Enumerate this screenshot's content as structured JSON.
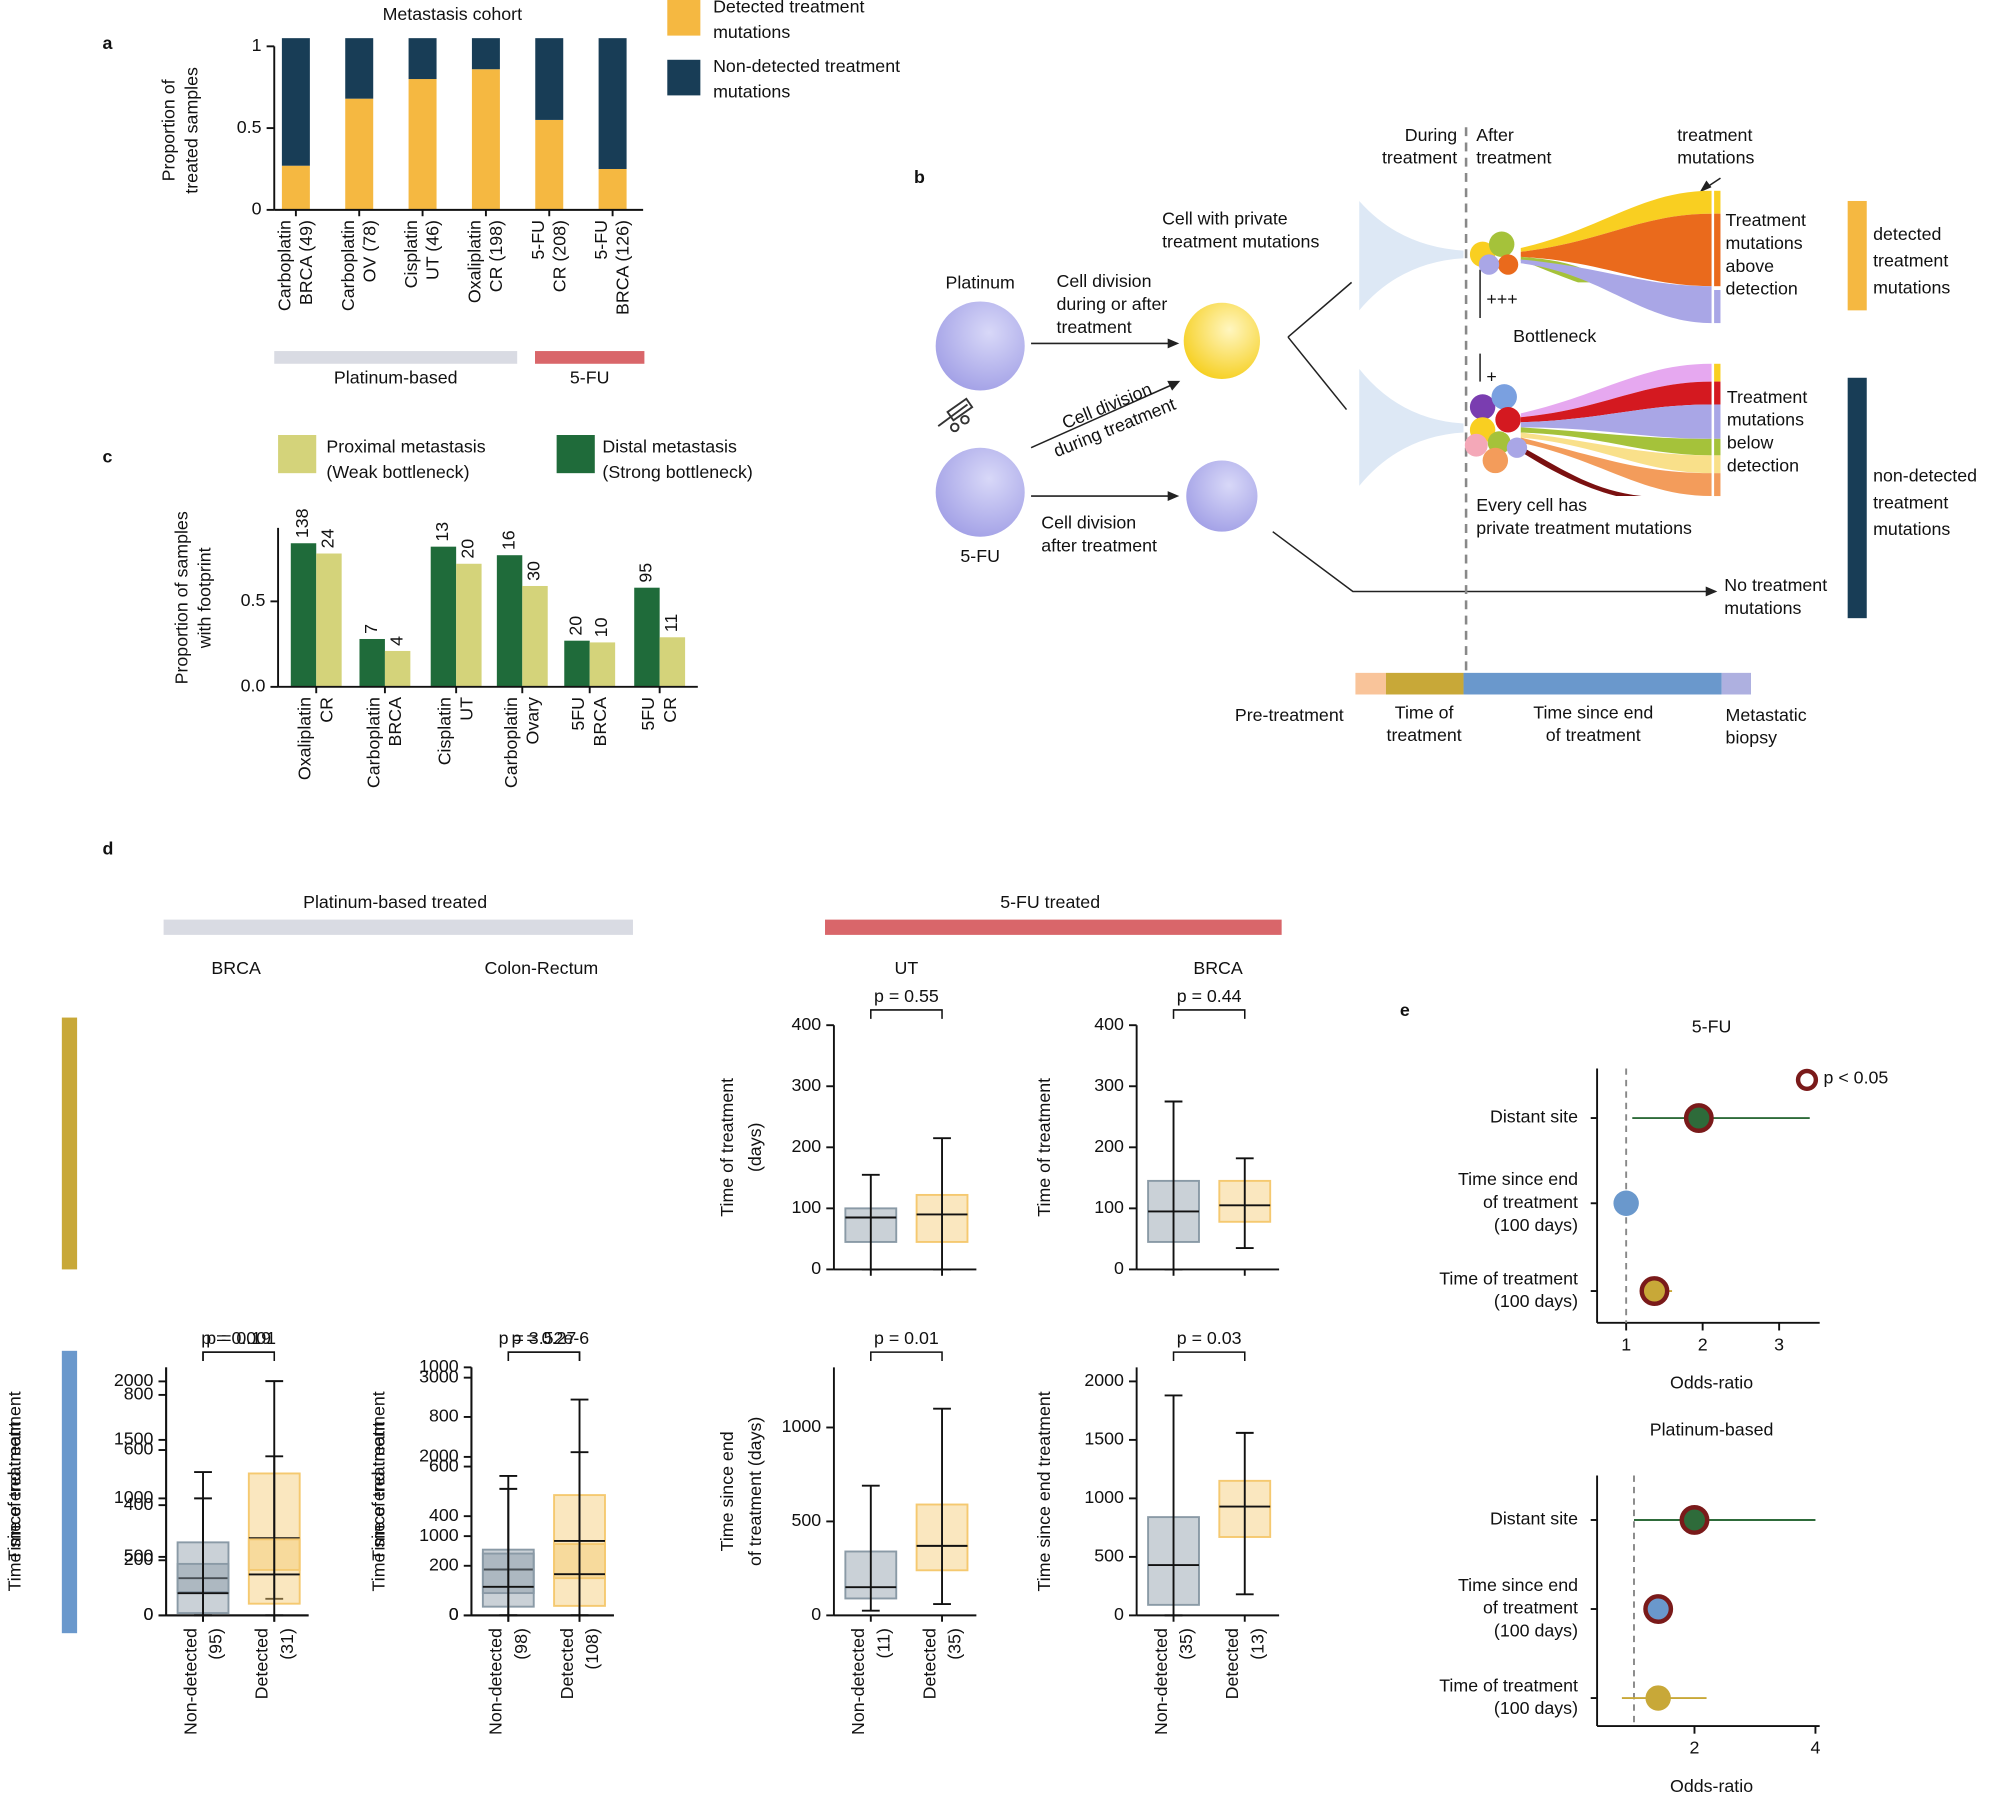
{
  "panel_labels": [
    "a",
    "b",
    "c",
    "d",
    "e"
  ],
  "chart_data": [
    {
      "type": "stacked_bar",
      "title": "Metastasis cohort",
      "ylabel": [
        "Proportion of",
        "treated samples"
      ],
      "categories": [
        [
          "Carboplatin",
          "BRCA (49)"
        ],
        [
          "Carboplatin",
          "OV (78)"
        ],
        [
          "Cisplatin",
          "UT (46)"
        ],
        [
          "Oxaliplatin",
          "CR (198)"
        ],
        [
          "5-FU",
          "CR (208)"
        ],
        [
          "5-FU",
          "BRCA (126)"
        ]
      ],
      "series": [
        {
          "name": [
            "Detected treatment",
            "mutations"
          ],
          "color": "#f5b841",
          "values": [
            0.27,
            0.68,
            0.8,
            0.86,
            0.55,
            0.25
          ]
        },
        {
          "name": [
            "Non-detected treatment",
            "mutations"
          ],
          "color": "#183d56",
          "values": [
            0.78,
            0.37,
            0.25,
            0.19,
            0.5,
            0.8
          ]
        }
      ],
      "ylim": [
        0,
        1.05
      ],
      "yticks": [
        0,
        0.5,
        1
      ],
      "groups": [
        {
          "label": "Platinum-based",
          "color": "#d9dbe3"
        },
        {
          "label": "5-FU",
          "color": "#d9666a"
        }
      ]
    },
    {
      "type": "grouped_bar",
      "ylabel": [
        "Proportion of samples",
        "with footprint"
      ],
      "categories": [
        [
          "Oxaliplatin",
          "CR"
        ],
        [
          "Carboplatin",
          "BRCA"
        ],
        [
          "Cisplatin",
          "UT"
        ],
        [
          "Carboplatin",
          "Ovary"
        ],
        [
          "5FU",
          "BRCA"
        ],
        [
          "5FU",
          "CR"
        ]
      ],
      "series": [
        {
          "name": [
            "Distal metastasis",
            "(Strong bottleneck)"
          ],
          "color": "#1f6b3a",
          "values": [
            0.84,
            0.28,
            0.82,
            0.77,
            0.27,
            0.58
          ],
          "counts": [
            138,
            7,
            13,
            16,
            20,
            95
          ]
        },
        {
          "name": [
            "Proximal metastasis",
            "(Weak bottleneck)"
          ],
          "color": "#d4d37a",
          "values": [
            0.78,
            0.21,
            0.72,
            0.59,
            0.26,
            0.29
          ],
          "counts": [
            24,
            4,
            20,
            30,
            10,
            11
          ]
        }
      ],
      "ylim": [
        0,
        0.93
      ],
      "yticks": [
        {
          "value": 0,
          "label": "0.0"
        },
        0.5
      ]
    },
    {
      "type": "box",
      "title": "UT",
      "ylabel": [
        "Time of treatment",
        "(days)"
      ],
      "pvalue": "p = 0.55",
      "ylim": [
        0,
        400
      ],
      "yticks": [
        0,
        100,
        200,
        300,
        400
      ],
      "boxes": [
        {
          "q1": 45,
          "median": 85,
          "q3": 100,
          "whislo": 0,
          "whishi": 155,
          "color": "#8a9aa6"
        },
        {
          "q1": 45,
          "median": 90,
          "q3": 122,
          "whislo": 0,
          "whishi": 215,
          "color": "#f5c970"
        }
      ]
    },
    {
      "type": "box",
      "title": "BRCA",
      "ylabel": [
        "Time of treatment"
      ],
      "pvalue": "p = 0.44",
      "ylim": [
        0,
        400
      ],
      "yticks": [
        0,
        100,
        200,
        300,
        400
      ],
      "boxes": [
        {
          "q1": 45,
          "median": 95,
          "q3": 145,
          "whislo": 0,
          "whishi": 275,
          "color": "#8a9aa6"
        },
        {
          "q1": 78,
          "median": 105,
          "q3": 145,
          "whislo": 35,
          "whishi": 182,
          "color": "#f5c970"
        }
      ]
    },
    {
      "type": "box",
      "title": "BRCA",
      "ylabel": [
        "Time of treatment"
      ],
      "pvalue": "p = 0.001",
      "ylim": [
        0,
        900
      ],
      "yticks": [
        0,
        200,
        400,
        600,
        800
      ],
      "boxes": [
        {
          "q1": 85,
          "median": 135,
          "q3": 265,
          "whislo": 0,
          "whishi": 520,
          "color": "#8a9aa6"
        },
        {
          "q1": 165,
          "median": 280,
          "q3": 515,
          "whislo": 60,
          "whishi": 850,
          "color": "#f5c970"
        }
      ]
    },
    {
      "type": "box",
      "title": "Colon-Rectum",
      "ylabel": [
        "Time of treatment"
      ],
      "pvalue": "p = 3.52e-6",
      "ylim": [
        0,
        1000
      ],
      "yticks": [
        0,
        200,
        400,
        600,
        800,
        1000
      ],
      "boxes": [
        {
          "q1": 90,
          "median": 185,
          "q3": 265,
          "whislo": 0,
          "whishi": 510,
          "color": "#8a9aa6"
        },
        {
          "q1": 150,
          "median": 300,
          "q3": 485,
          "whislo": 0,
          "whishi": 870,
          "color": "#f5c970"
        }
      ]
    },
    {
      "type": "box",
      "ylabel": [
        "Time since end",
        "of treatment (days)"
      ],
      "pvalue": "p = 0.01",
      "ylim": [
        0,
        1320
      ],
      "yticks": [
        0,
        500,
        1000
      ],
      "categories": [
        [
          "Non-detected",
          "(11)"
        ],
        [
          "Detected",
          "(35)"
        ]
      ],
      "boxes": [
        {
          "q1": 90,
          "median": 150,
          "q3": 340,
          "whislo": 25,
          "whishi": 690,
          "color": "#8a9aa6"
        },
        {
          "q1": 240,
          "median": 370,
          "q3": 590,
          "whislo": 60,
          "whishi": 1100,
          "color": "#f5c970"
        }
      ]
    },
    {
      "type": "box",
      "ylabel": [
        "Time since end treatment"
      ],
      "pvalue": "p = 0.03",
      "ylim": [
        0,
        2120
      ],
      "yticks": [
        0,
        500,
        1000,
        1500,
        2000
      ],
      "categories": [
        [
          "Non-detected",
          "(35)"
        ],
        [
          "Detected",
          "(13)"
        ]
      ],
      "boxes": [
        {
          "q1": 90,
          "median": 430,
          "q3": 840,
          "whislo": 0,
          "whishi": 1880,
          "color": "#8a9aa6"
        },
        {
          "q1": 670,
          "median": 930,
          "q3": 1150,
          "whislo": 180,
          "whishi": 1560,
          "color": "#f5c970"
        }
      ]
    },
    {
      "type": "box",
      "ylabel": [
        "Time since end treatment"
      ],
      "pvalue": "p = 0.19",
      "ylim": [
        0,
        2120
      ],
      "yticks": [
        0,
        500,
        1000,
        1500,
        2000
      ],
      "categories": [
        [
          "Non-detected",
          "(95)"
        ],
        [
          "Detected",
          "(31)"
        ]
      ],
      "boxes": [
        {
          "q1": 20,
          "median": 190,
          "q3": 440,
          "whislo": 0,
          "whishi": 1000,
          "color": "#8a9aa6"
        },
        {
          "q1": 100,
          "median": 350,
          "q3": 650,
          "whislo": 0,
          "whishi": 1360,
          "color": "#f5c970"
        }
      ]
    },
    {
      "type": "box",
      "ylabel": [
        "Time since end treatment"
      ],
      "pvalue": "p = 0.27",
      "ylim": [
        0,
        3130
      ],
      "yticks": [
        0,
        1000,
        2000,
        3000
      ],
      "categories": [
        [
          "Non-detected",
          "(98)"
        ],
        [
          "Detected",
          "(108)"
        ]
      ],
      "boxes": [
        {
          "q1": 110,
          "median": 360,
          "q3": 780,
          "whislo": 0,
          "whishi": 1760,
          "color": "#8a9aa6"
        },
        {
          "q1": 120,
          "median": 520,
          "q3": 900,
          "whislo": 0,
          "whishi": 2060,
          "color": "#f5c970"
        }
      ]
    },
    {
      "type": "forest",
      "title": "5-FU",
      "xlabel": "Odds-ratio",
      "xlim": [
        0.62,
        3.53
      ],
      "xticks": [
        1,
        2,
        3
      ],
      "reference": 1,
      "legend_label": "p < 0.05",
      "categories": [
        [
          "Distant site"
        ],
        [
          "Time since end",
          "of treatment",
          "(100 days)"
        ],
        [
          "Time of treatment",
          "(100 days)"
        ]
      ],
      "estimates": [
        1.95,
        1.0,
        1.37
      ],
      "ci_low": [
        1.08,
        0.95,
        1.3
      ],
      "ci_high": [
        3.4,
        1.05,
        1.6
      ],
      "significant": [
        true,
        false,
        true
      ],
      "colors": [
        "#2e6b3a",
        "#6a98cc",
        "#c8a838"
      ],
      "sig_color": "#7a1a1a"
    },
    {
      "type": "forest",
      "title": "Platinum-based",
      "xlabel": "Odds-ratio",
      "xlim": [
        0.39,
        4.07
      ],
      "xticks": [
        2,
        4
      ],
      "reference": 1,
      "categories": [
        [
          "Distant site"
        ],
        [
          "Time since end",
          "of treatment",
          "(100 days)"
        ],
        [
          "Time of treatment",
          "(100 days)"
        ]
      ],
      "estimates": [
        2.0,
        1.4,
        1.4
      ],
      "ci_low": [
        1.0,
        1.3,
        0.8
      ],
      "ci_high": [
        4.0,
        1.5,
        2.2
      ],
      "significant": [
        true,
        true,
        false
      ],
      "colors": [
        "#2e6b3a",
        "#6a98cc",
        "#c8a838"
      ],
      "sig_color": "#7a1a1a"
    }
  ],
  "panel_d": {
    "groups": [
      "Platinum-based treated",
      "5-FU treated"
    ]
  },
  "diagram": {
    "platinum": [
      "Platinum"
    ],
    "fu": [
      "5-FU"
    ],
    "div_during_after": [
      "Cell division",
      "during or after",
      "treatment"
    ],
    "div_during": [
      "Cell division",
      "during treatment"
    ],
    "div_after": [
      "Cell division",
      "after treatment"
    ],
    "private": [
      "Cell with private",
      "treatment mutations"
    ],
    "during": [
      "During",
      "treatment"
    ],
    "after": [
      "After",
      "treatment"
    ],
    "tm": [
      "treatment",
      "mutations"
    ],
    "above": [
      "Treatment",
      "mutations",
      "above",
      "detection"
    ],
    "plus3": [
      "+++"
    ],
    "bottleneck": [
      "Bottleneck"
    ],
    "plus": [
      "+"
    ],
    "below": [
      "Treatment",
      "mutations",
      "below",
      "detection"
    ],
    "every": [
      "Every cell has",
      "private treatment mutations"
    ],
    "no_tm": [
      "No treatment",
      "mutations"
    ],
    "detected": [
      "detected",
      "treatment",
      "mutations"
    ],
    "nondetected": [
      "non-detected",
      "treatment",
      "mutations"
    ],
    "pre": [
      "Pre-treatment"
    ],
    "time": [
      "Time of",
      "treatment"
    ],
    "since": [
      "Time since end",
      "of treatment"
    ],
    "biopsy": [
      "Metastatic",
      "biopsy"
    ]
  }
}
